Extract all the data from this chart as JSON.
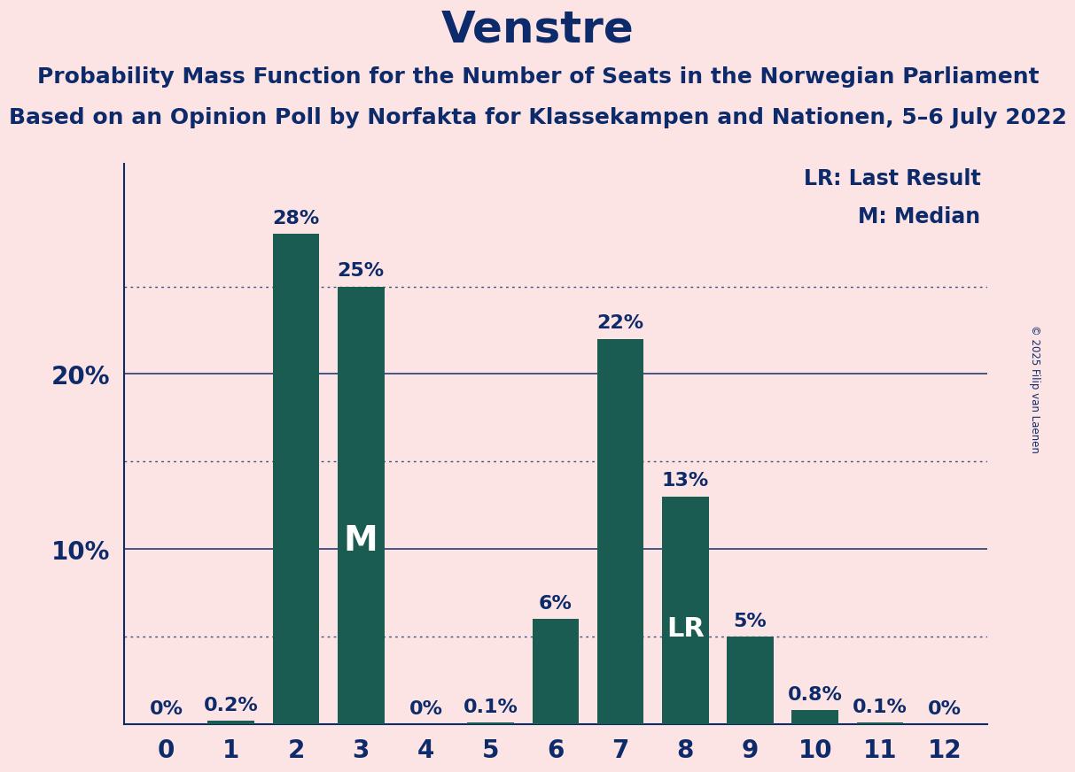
{
  "title": "Venstre",
  "subtitle1": "Probability Mass Function for the Number of Seats in the Norwegian Parliament",
  "subtitle2": "Based on an Opinion Poll by Norfakta for Klassekampen and Nationen, 5–6 July 2022",
  "copyright": "© 2025 Filip van Laenen",
  "legend_lr": "LR: Last Result",
  "legend_m": "M: Median",
  "background_color": "#fce4e4",
  "bar_color": "#1a5c52",
  "text_color": "#0d2b6b",
  "grid_color": "#0d2b6b",
  "categories": [
    0,
    1,
    2,
    3,
    4,
    5,
    6,
    7,
    8,
    9,
    10,
    11,
    12
  ],
  "values": [
    0.0,
    0.2,
    28.0,
    25.0,
    0.0,
    0.1,
    6.0,
    22.0,
    13.0,
    5.0,
    0.8,
    0.1,
    0.0
  ],
  "labels": [
    "0%",
    "0.2%",
    "28%",
    "25%",
    "0%",
    "0.1%",
    "6%",
    "22%",
    "13%",
    "5%",
    "0.8%",
    "0.1%",
    "0%"
  ],
  "median_bar": 3,
  "lr_bar": 8,
  "ylim": [
    0,
    32
  ],
  "solid_lines": [
    10,
    20
  ],
  "dotted_lines": [
    5,
    15,
    25
  ],
  "title_fontsize": 36,
  "subtitle_fontsize": 18,
  "tick_fontsize": 20,
  "bar_label_fontsize": 16,
  "annotation_fontsize": 18,
  "legend_fontsize": 17,
  "m_fontsize": 28,
  "lr_fontsize": 22,
  "bar_width": 0.72
}
